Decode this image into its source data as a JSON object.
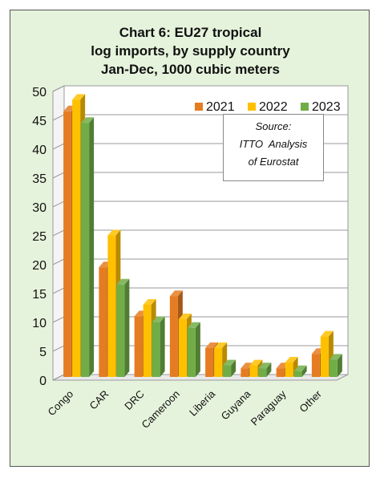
{
  "chart_data": {
    "type": "bar",
    "title_lines": [
      "Chart 6: EU27 tropical",
      "log imports, by supply country",
      "Jan-Dec, 1000 cubic meters"
    ],
    "categories": [
      "Congo",
      "CAR",
      "DRC",
      "Cameroon",
      "Liberia",
      "Guyana",
      "Paraguay",
      "Other"
    ],
    "series": [
      {
        "name": "2021",
        "values": [
          46,
          19,
          10.5,
          14,
          5,
          1.5,
          1.5,
          4
        ],
        "color": "#e57c22"
      },
      {
        "name": "2022",
        "values": [
          48,
          24.5,
          12.5,
          10,
          5,
          2,
          2.5,
          7
        ],
        "color": "#ffc000"
      },
      {
        "name": "2023",
        "values": [
          44,
          16,
          9.5,
          8.5,
          2,
          1.5,
          1,
          3
        ],
        "color": "#70ad47"
      }
    ],
    "ylim": [
      0,
      50
    ],
    "yticks": [
      "0",
      "5",
      "10",
      "15",
      "20",
      "25",
      "30",
      "35",
      "40",
      "45",
      "50"
    ],
    "grid": true,
    "legend_position": "top-right",
    "annotation_lines": [
      "Source:",
      "ITTO  Analysis",
      "of Eurostat"
    ]
  }
}
